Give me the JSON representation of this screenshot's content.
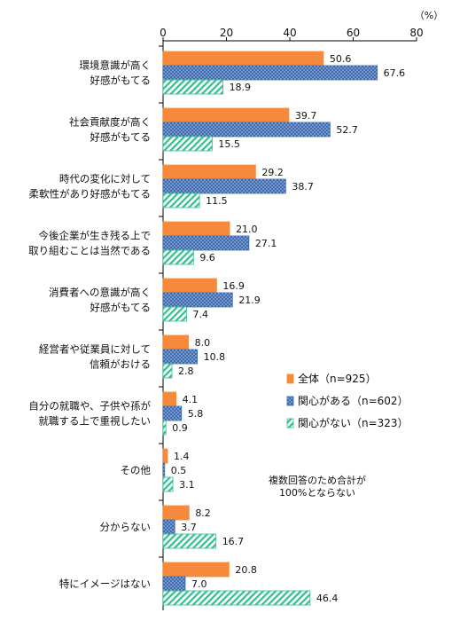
{
  "chart_data": {
    "type": "bar",
    "orientation": "horizontal",
    "unit": "（%）",
    "xlim": [
      0,
      80
    ],
    "x_ticks": [
      "0",
      "20",
      "40",
      "60",
      "80"
    ],
    "categories": [
      [
        "環境意識が高く",
        "好感がもてる"
      ],
      [
        "社会貢献度が高く",
        "好感がもてる"
      ],
      [
        "時代の変化に対して",
        "柔軟性があり好感がもてる"
      ],
      [
        "今後企業が生き残る上で",
        "取り組むことは当然である"
      ],
      [
        "消費者への意識が高く",
        "好感がもてる"
      ],
      [
        "経営者や従業員に対して",
        "信頼がおける"
      ],
      [
        "自分の就職や、子供や孫が",
        "就職する上で重視したい"
      ],
      [
        "その他"
      ],
      [
        "分からない"
      ],
      [
        "特にイメージはない"
      ]
    ],
    "series": [
      {
        "name": "全体（n=925）",
        "color": "#f58a3c",
        "pattern": "solid",
        "values": [
          50.6,
          39.7,
          29.2,
          21.0,
          16.9,
          8.0,
          4.1,
          1.4,
          8.2,
          20.8
        ]
      },
      {
        "name": "関心がある（n=602）",
        "color": "#3e6ab0",
        "pattern": "dots",
        "values": [
          67.6,
          52.7,
          38.7,
          27.1,
          21.9,
          10.8,
          5.8,
          0.5,
          3.7,
          7.0
        ]
      },
      {
        "name": "関心がない（n=323）",
        "color": "#2fbf8c",
        "pattern": "diagonal",
        "values": [
          18.9,
          15.5,
          11.5,
          9.6,
          7.4,
          2.8,
          0.9,
          3.1,
          16.7,
          46.4
        ]
      }
    ],
    "legend_position": "right-middle",
    "note": [
      "複数回答のため合計が",
      "100%とならない"
    ]
  }
}
